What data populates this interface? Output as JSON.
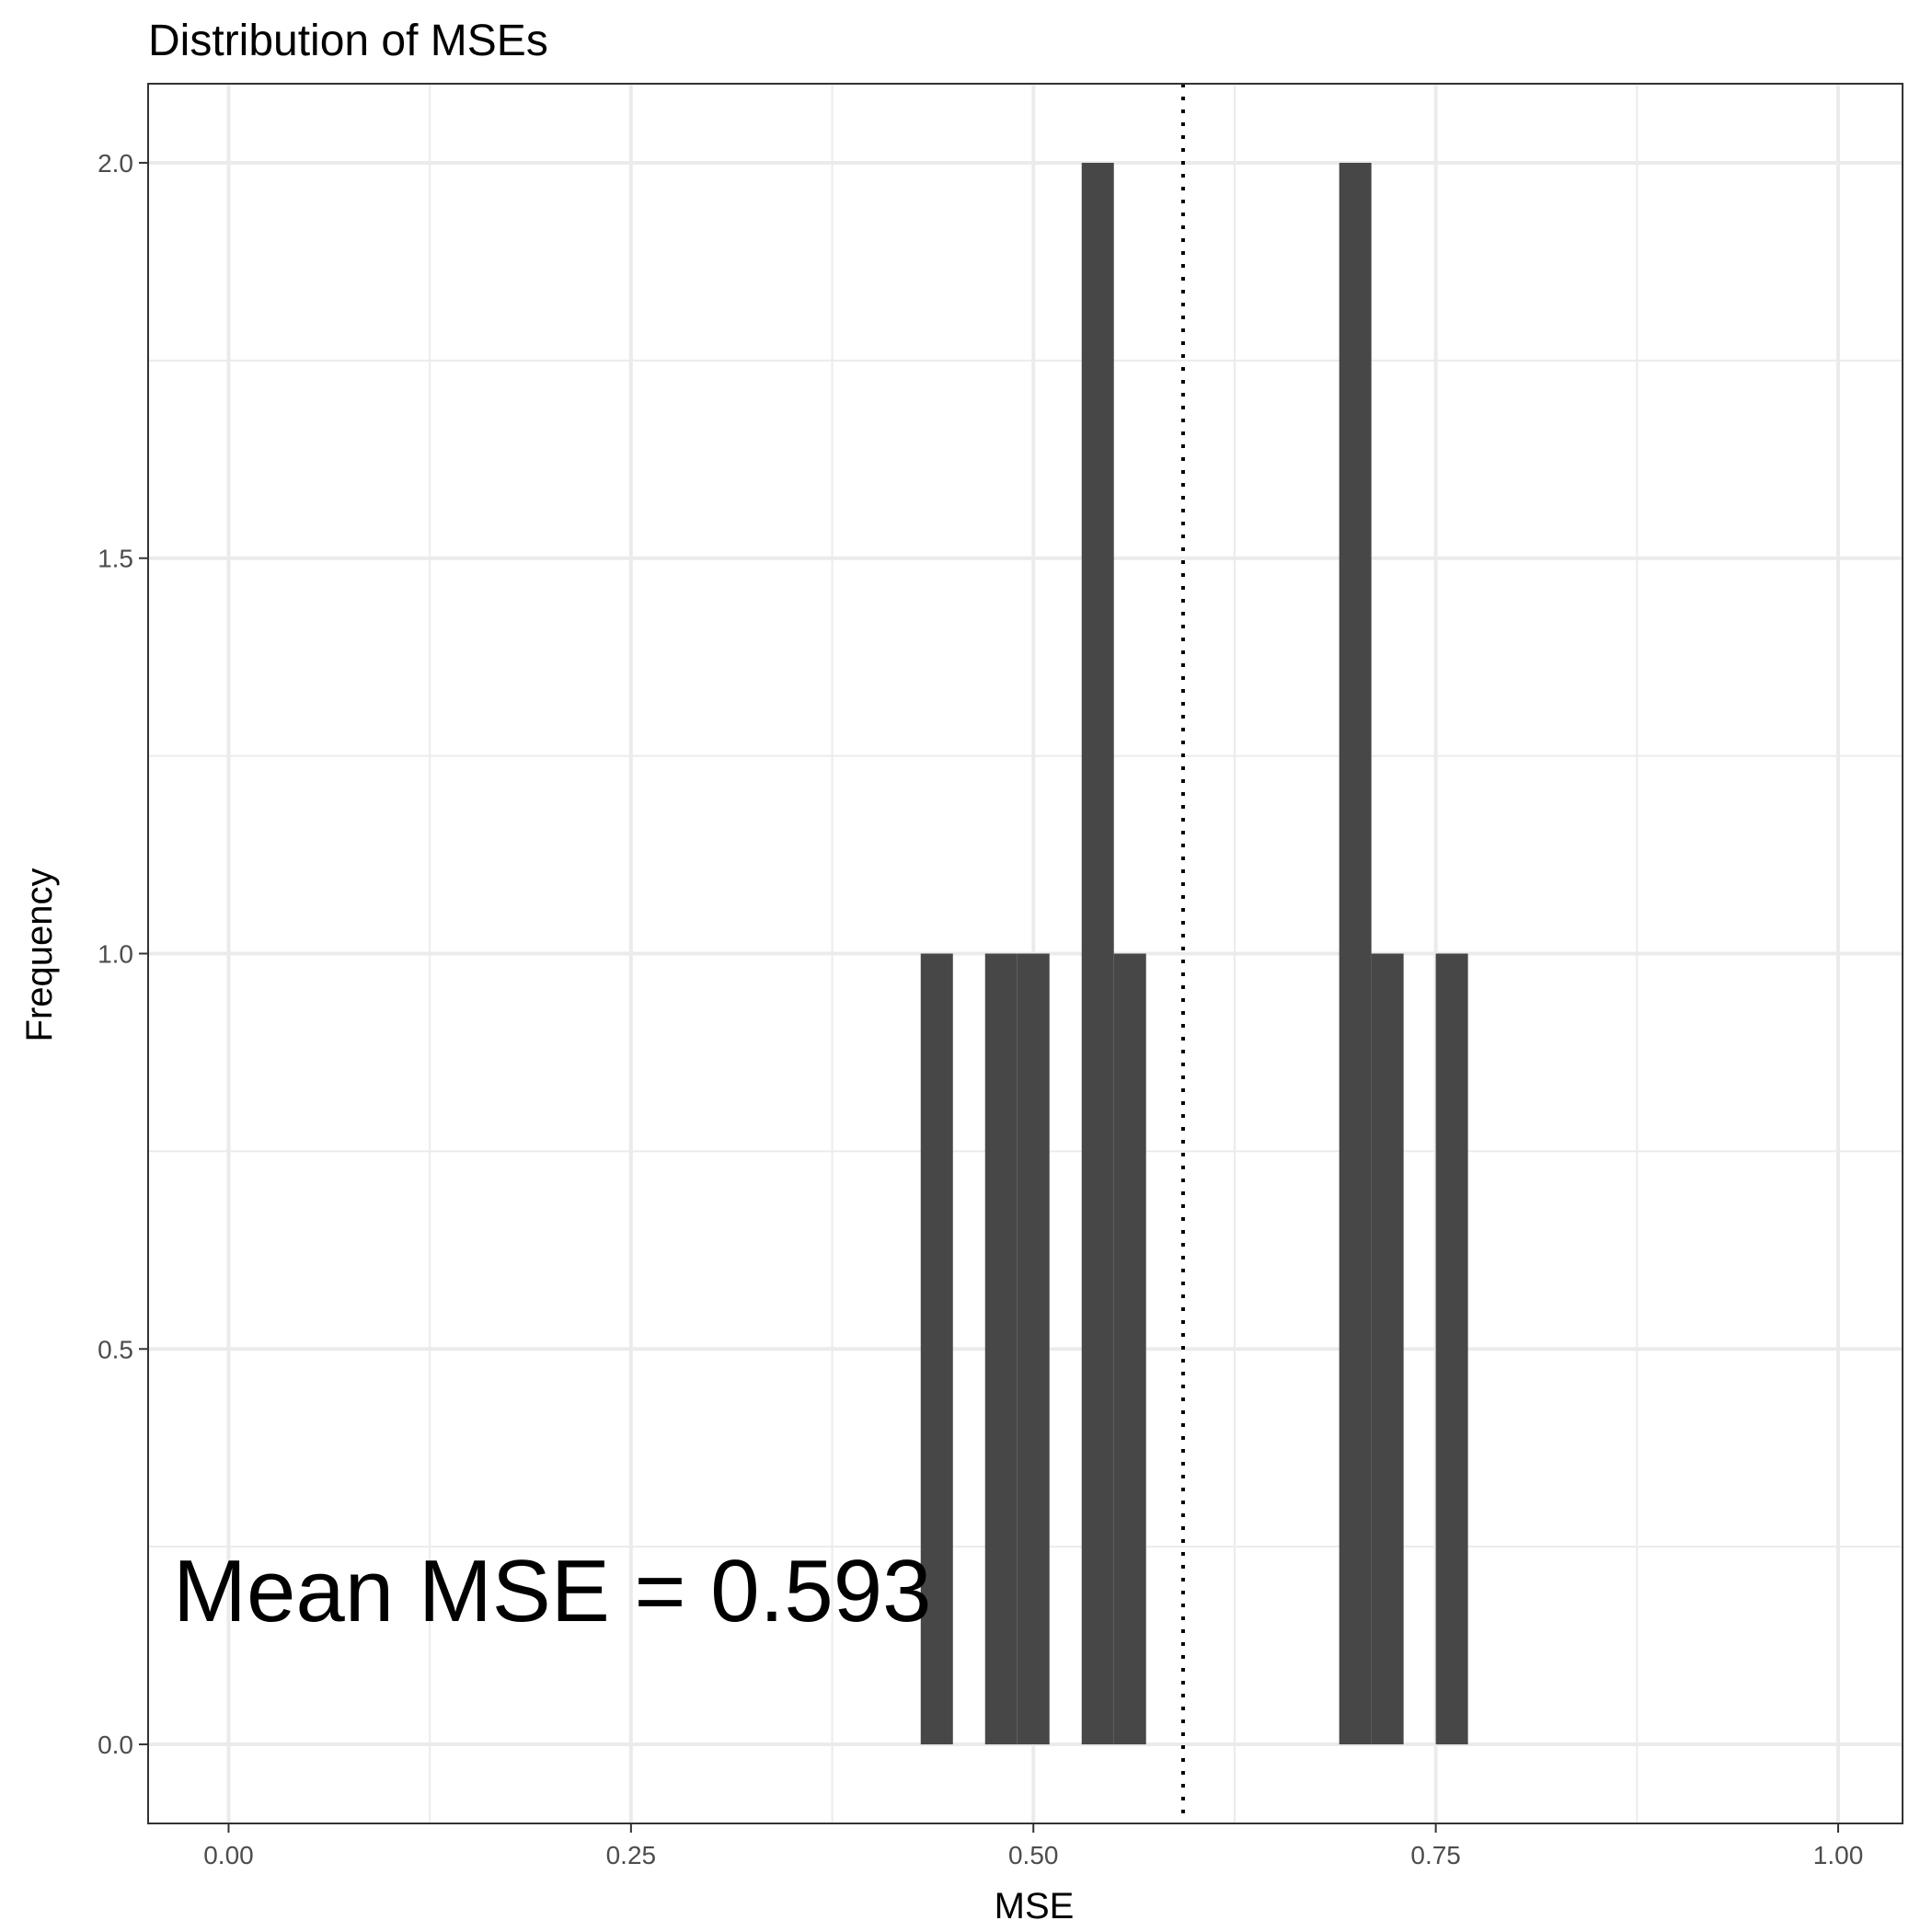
{
  "chart_data": {
    "type": "bar",
    "title": "Distribution of MSEs",
    "xlabel": "MSE",
    "ylabel": "Frequency",
    "xlim": [
      -0.05,
      1.04
    ],
    "ylim": [
      -0.1,
      2.1
    ],
    "x_ticks": [
      0.0,
      0.25,
      0.5,
      0.75,
      1.0
    ],
    "x_tick_labels": [
      "0.00",
      "0.25",
      "0.50",
      "0.75",
      "1.00"
    ],
    "y_ticks": [
      0.0,
      0.5,
      1.0,
      1.5,
      2.0
    ],
    "y_tick_labels": [
      "0.0",
      "0.5",
      "1.0",
      "1.5",
      "2.0"
    ],
    "bin_width": 0.02,
    "bins": [
      {
        "x": 0.44,
        "count": 1
      },
      {
        "x": 0.48,
        "count": 1
      },
      {
        "x": 0.5,
        "count": 1
      },
      {
        "x": 0.54,
        "count": 2
      },
      {
        "x": 0.56,
        "count": 1
      },
      {
        "x": 0.7,
        "count": 2
      },
      {
        "x": 0.72,
        "count": 1
      },
      {
        "x": 0.76,
        "count": 1
      }
    ],
    "mean_line": 0.593,
    "annotation": "Mean MSE = 0.593",
    "grid": true,
    "bar_color": "#474747",
    "grid_color": "#ebebeb",
    "border_color": "#333333"
  }
}
